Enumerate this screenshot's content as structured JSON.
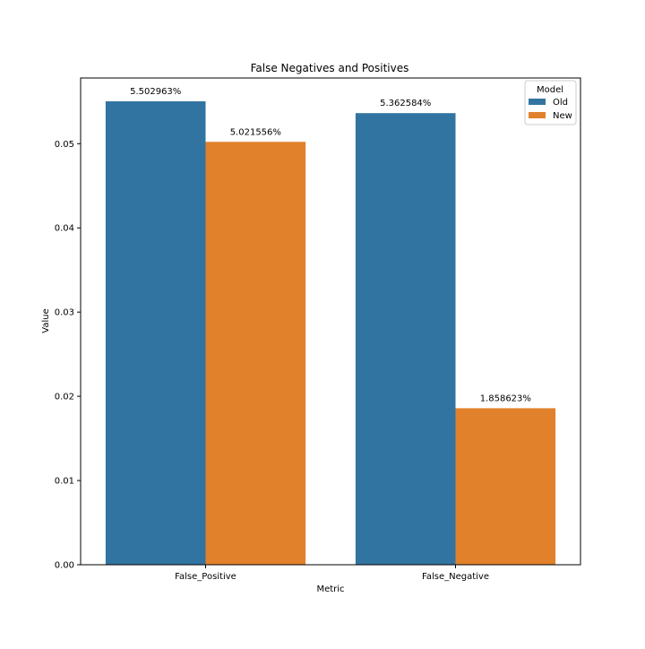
{
  "chart_data": {
    "type": "bar",
    "title": "False Negatives and Positives",
    "xlabel": "Metric",
    "ylabel": "Value",
    "categories": [
      "False_Positive",
      "False_Negative"
    ],
    "ylim": [
      0,
      0.0578
    ],
    "yticks": [
      0.0,
      0.01,
      0.02,
      0.03,
      0.04,
      0.05
    ],
    "ytick_labels": [
      "0.00",
      "0.01",
      "0.02",
      "0.03",
      "0.04",
      "0.05"
    ],
    "grid": false,
    "legend": {
      "title": "Model",
      "placement": "top-right"
    },
    "series": [
      {
        "name": "Old",
        "color": "#3274a1",
        "values": [
          0.05502963,
          0.05362584
        ],
        "labels": [
          "5.502963%",
          "5.362584%"
        ]
      },
      {
        "name": "New",
        "color": "#e1812c",
        "values": [
          0.05021556,
          0.01858623
        ],
        "labels": [
          "5.021556%",
          "1.858623%"
        ]
      }
    ]
  }
}
